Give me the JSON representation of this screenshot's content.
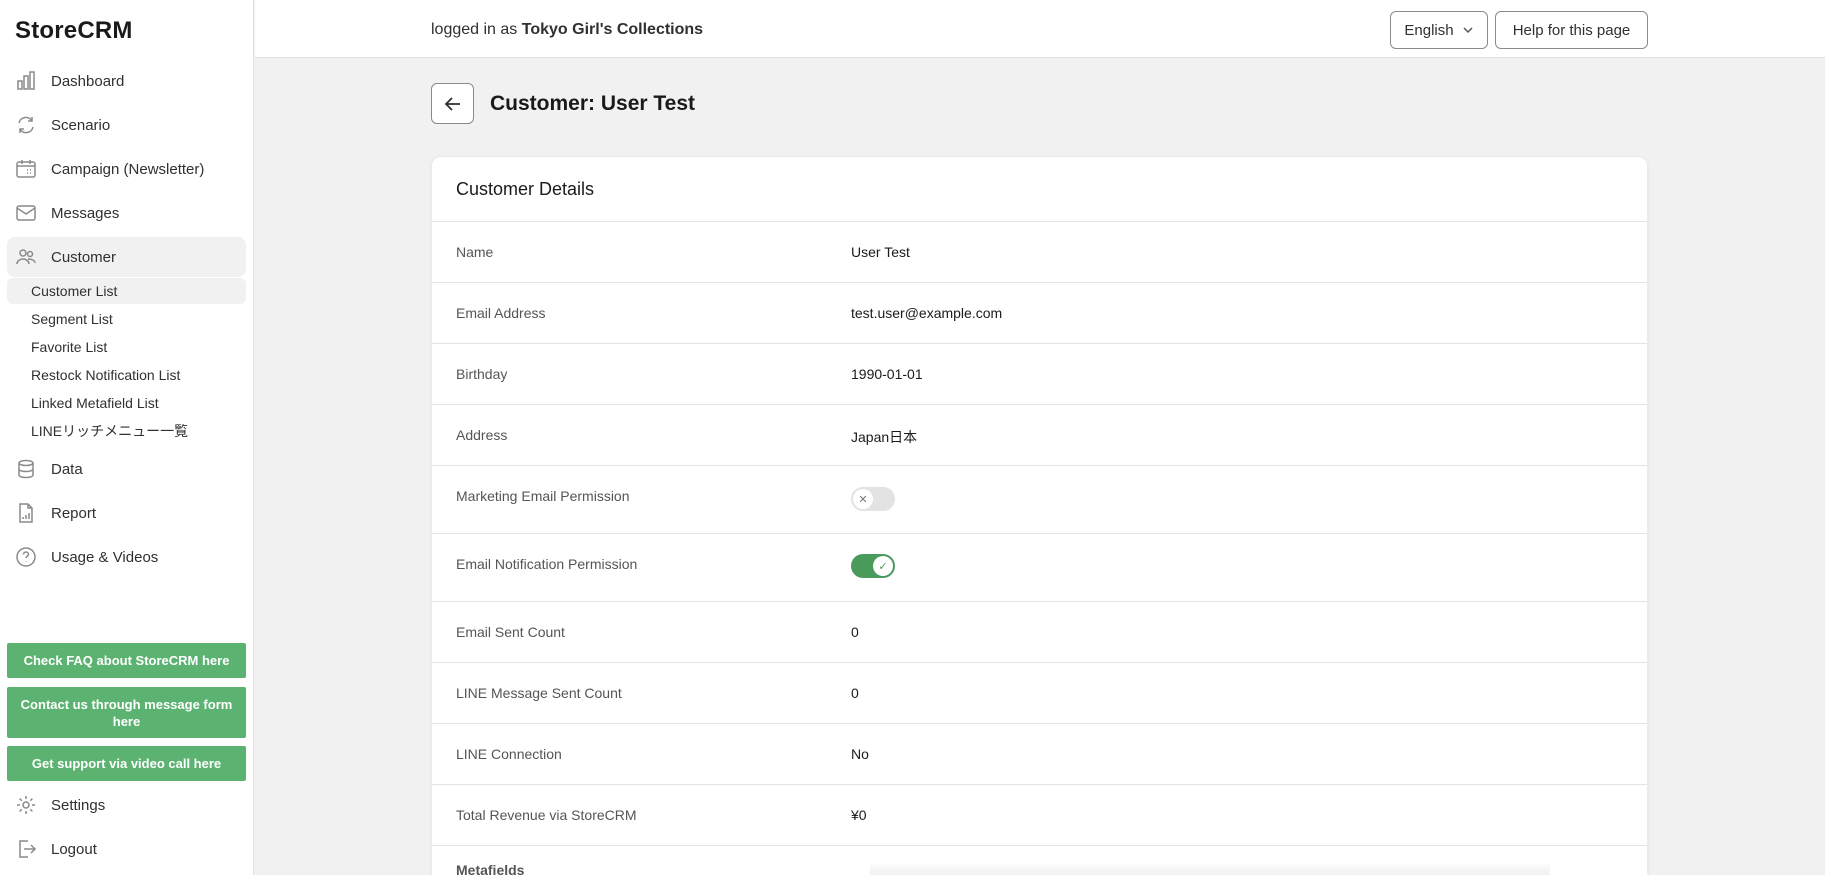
{
  "app": {
    "logo": "StoreCRM"
  },
  "sidebar": {
    "nav": [
      {
        "label": "Dashboard",
        "icon": "bar-chart-icon"
      },
      {
        "label": "Scenario",
        "icon": "refresh-icon"
      },
      {
        "label": "Campaign (Newsletter)",
        "icon": "calendar-icon"
      },
      {
        "label": "Messages",
        "icon": "mail-icon"
      },
      {
        "label": "Customer",
        "icon": "people-icon"
      }
    ],
    "customer_sub": [
      "Customer List",
      "Segment List",
      "Favorite List",
      "Restock Notification List",
      "Linked Metafield List",
      "LINEリッチメニュー一覧"
    ],
    "nav2": [
      {
        "label": "Data",
        "icon": "database-icon"
      },
      {
        "label": "Report",
        "icon": "report-icon"
      },
      {
        "label": "Usage & Videos",
        "icon": "help-icon"
      }
    ],
    "support_buttons": [
      "Check FAQ about StoreCRM here",
      "Contact us through message form here",
      "Get support via video call here"
    ],
    "footer": [
      {
        "label": "Settings",
        "icon": "gear-icon"
      },
      {
        "label": "Logout",
        "icon": "logout-icon"
      }
    ]
  },
  "topbar": {
    "logged_prefix": "logged in as",
    "store_name": "Tokyo Girl's Collections",
    "language": "English",
    "help": "Help for this page"
  },
  "main": {
    "title": "Customer: User Test",
    "card_title": "Customer Details",
    "fields": [
      {
        "label": "Name",
        "value": "User Test"
      },
      {
        "label": "Email Address",
        "value": "test.user@example.com"
      },
      {
        "label": "Birthday",
        "value": "1990-01-01"
      },
      {
        "label": "Address",
        "value": "Japan日本"
      },
      {
        "label": "Marketing Email Permission",
        "toggle": false
      },
      {
        "label": "Email Notification Permission",
        "toggle": true
      },
      {
        "label": "Email Sent Count",
        "value": "0"
      },
      {
        "label": "LINE Message Sent Count",
        "value": "0"
      },
      {
        "label": "LINE Connection",
        "value": "No"
      },
      {
        "label": "Total Revenue via StoreCRM",
        "value": "¥0"
      },
      {
        "label": "Metafields"
      }
    ]
  },
  "colors": {
    "accent_green": "#5cb371",
    "toggle_on": "#4a9a5c"
  }
}
